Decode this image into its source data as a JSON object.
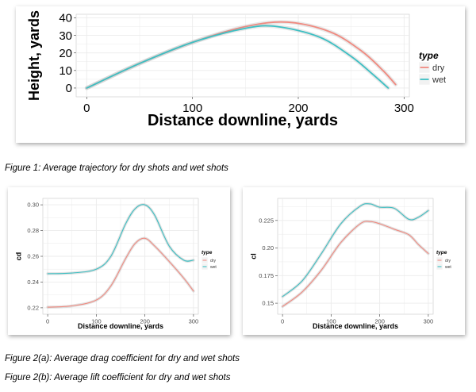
{
  "colors": {
    "dry": "#F08A80",
    "wet": "#3DBFC3",
    "grid": "#EBEBEB",
    "axis_text": "#4D4D4D"
  },
  "captions": {
    "fig1": "Figure 1: Average trajectory for dry shots and wet shots",
    "fig2a": "Figure 2(a): Average drag coefficient for dry and wet shots",
    "fig2b": "Figure 2(b): Average lift coefficient for dry and wet shots"
  },
  "chart_data": [
    {
      "id": "trajectory",
      "type": "line",
      "title": "",
      "xlabel": "Distance downline, yards",
      "ylabel": "Height, yards",
      "xlim": [
        -10,
        305
      ],
      "ylim": [
        -5,
        42
      ],
      "xticks": [
        0,
        100,
        200,
        300
      ],
      "yticks": [
        0,
        10,
        20,
        30,
        40
      ],
      "grid": true,
      "legend": {
        "title": "type",
        "position": "right",
        "entries": [
          "dry",
          "wet"
        ]
      },
      "series": [
        {
          "name": "dry",
          "x": [
            0,
            50,
            100,
            150,
            190,
            230,
            260,
            280,
            292
          ],
          "y": [
            0,
            14,
            26,
            35,
            37.5,
            32,
            21,
            10,
            2
          ]
        },
        {
          "name": "wet",
          "x": [
            0,
            50,
            100,
            150,
            180,
            220,
            250,
            270,
            285
          ],
          "y": [
            0,
            14,
            26,
            34,
            35,
            29,
            18,
            8,
            0
          ]
        }
      ]
    },
    {
      "id": "drag",
      "type": "line",
      "title": "",
      "xlabel": "Distance downline, yards",
      "ylabel": "cd",
      "xlim": [
        -10,
        310
      ],
      "ylim": [
        0.215,
        0.305
      ],
      "xticks": [
        0,
        100,
        200,
        300
      ],
      "yticks": [
        0.22,
        0.24,
        0.26,
        0.28,
        0.3
      ],
      "grid": true,
      "legend": {
        "title": "type",
        "position": "right",
        "entries": [
          "dry",
          "wet"
        ]
      },
      "series": [
        {
          "name": "dry",
          "x": [
            0,
            50,
            100,
            130,
            160,
            180,
            200,
            220,
            250,
            280,
            300
          ],
          "y": [
            0.2205,
            0.2215,
            0.226,
            0.237,
            0.258,
            0.27,
            0.274,
            0.268,
            0.256,
            0.243,
            0.233
          ]
        },
        {
          "name": "wet",
          "x": [
            0,
            50,
            100,
            130,
            160,
            180,
            200,
            220,
            250,
            280,
            300
          ],
          "y": [
            0.2465,
            0.247,
            0.25,
            0.26,
            0.285,
            0.297,
            0.3,
            0.292,
            0.268,
            0.257,
            0.257
          ]
        }
      ]
    },
    {
      "id": "lift",
      "type": "line",
      "title": "",
      "xlabel": "Distance downline, yards",
      "ylabel": "cl",
      "xlim": [
        -10,
        310
      ],
      "ylim": [
        0.14,
        0.245
      ],
      "xticks": [
        0,
        100,
        200,
        300
      ],
      "yticks": [
        0.15,
        0.175,
        0.2,
        0.225
      ],
      "grid": true,
      "legend": {
        "title": "type",
        "position": "right",
        "entries": [
          "dry",
          "wet"
        ]
      },
      "series": [
        {
          "name": "dry",
          "x": [
            0,
            40,
            80,
            120,
            160,
            180,
            200,
            230,
            260,
            280,
            300
          ],
          "y": [
            0.147,
            0.16,
            0.18,
            0.205,
            0.222,
            0.224,
            0.222,
            0.217,
            0.212,
            0.203,
            0.195
          ]
        },
        {
          "name": "wet",
          "x": [
            0,
            40,
            80,
            120,
            160,
            180,
            200,
            230,
            260,
            280,
            300
          ],
          "y": [
            0.156,
            0.17,
            0.195,
            0.222,
            0.238,
            0.24,
            0.237,
            0.236,
            0.226,
            0.228,
            0.234
          ]
        }
      ]
    }
  ]
}
